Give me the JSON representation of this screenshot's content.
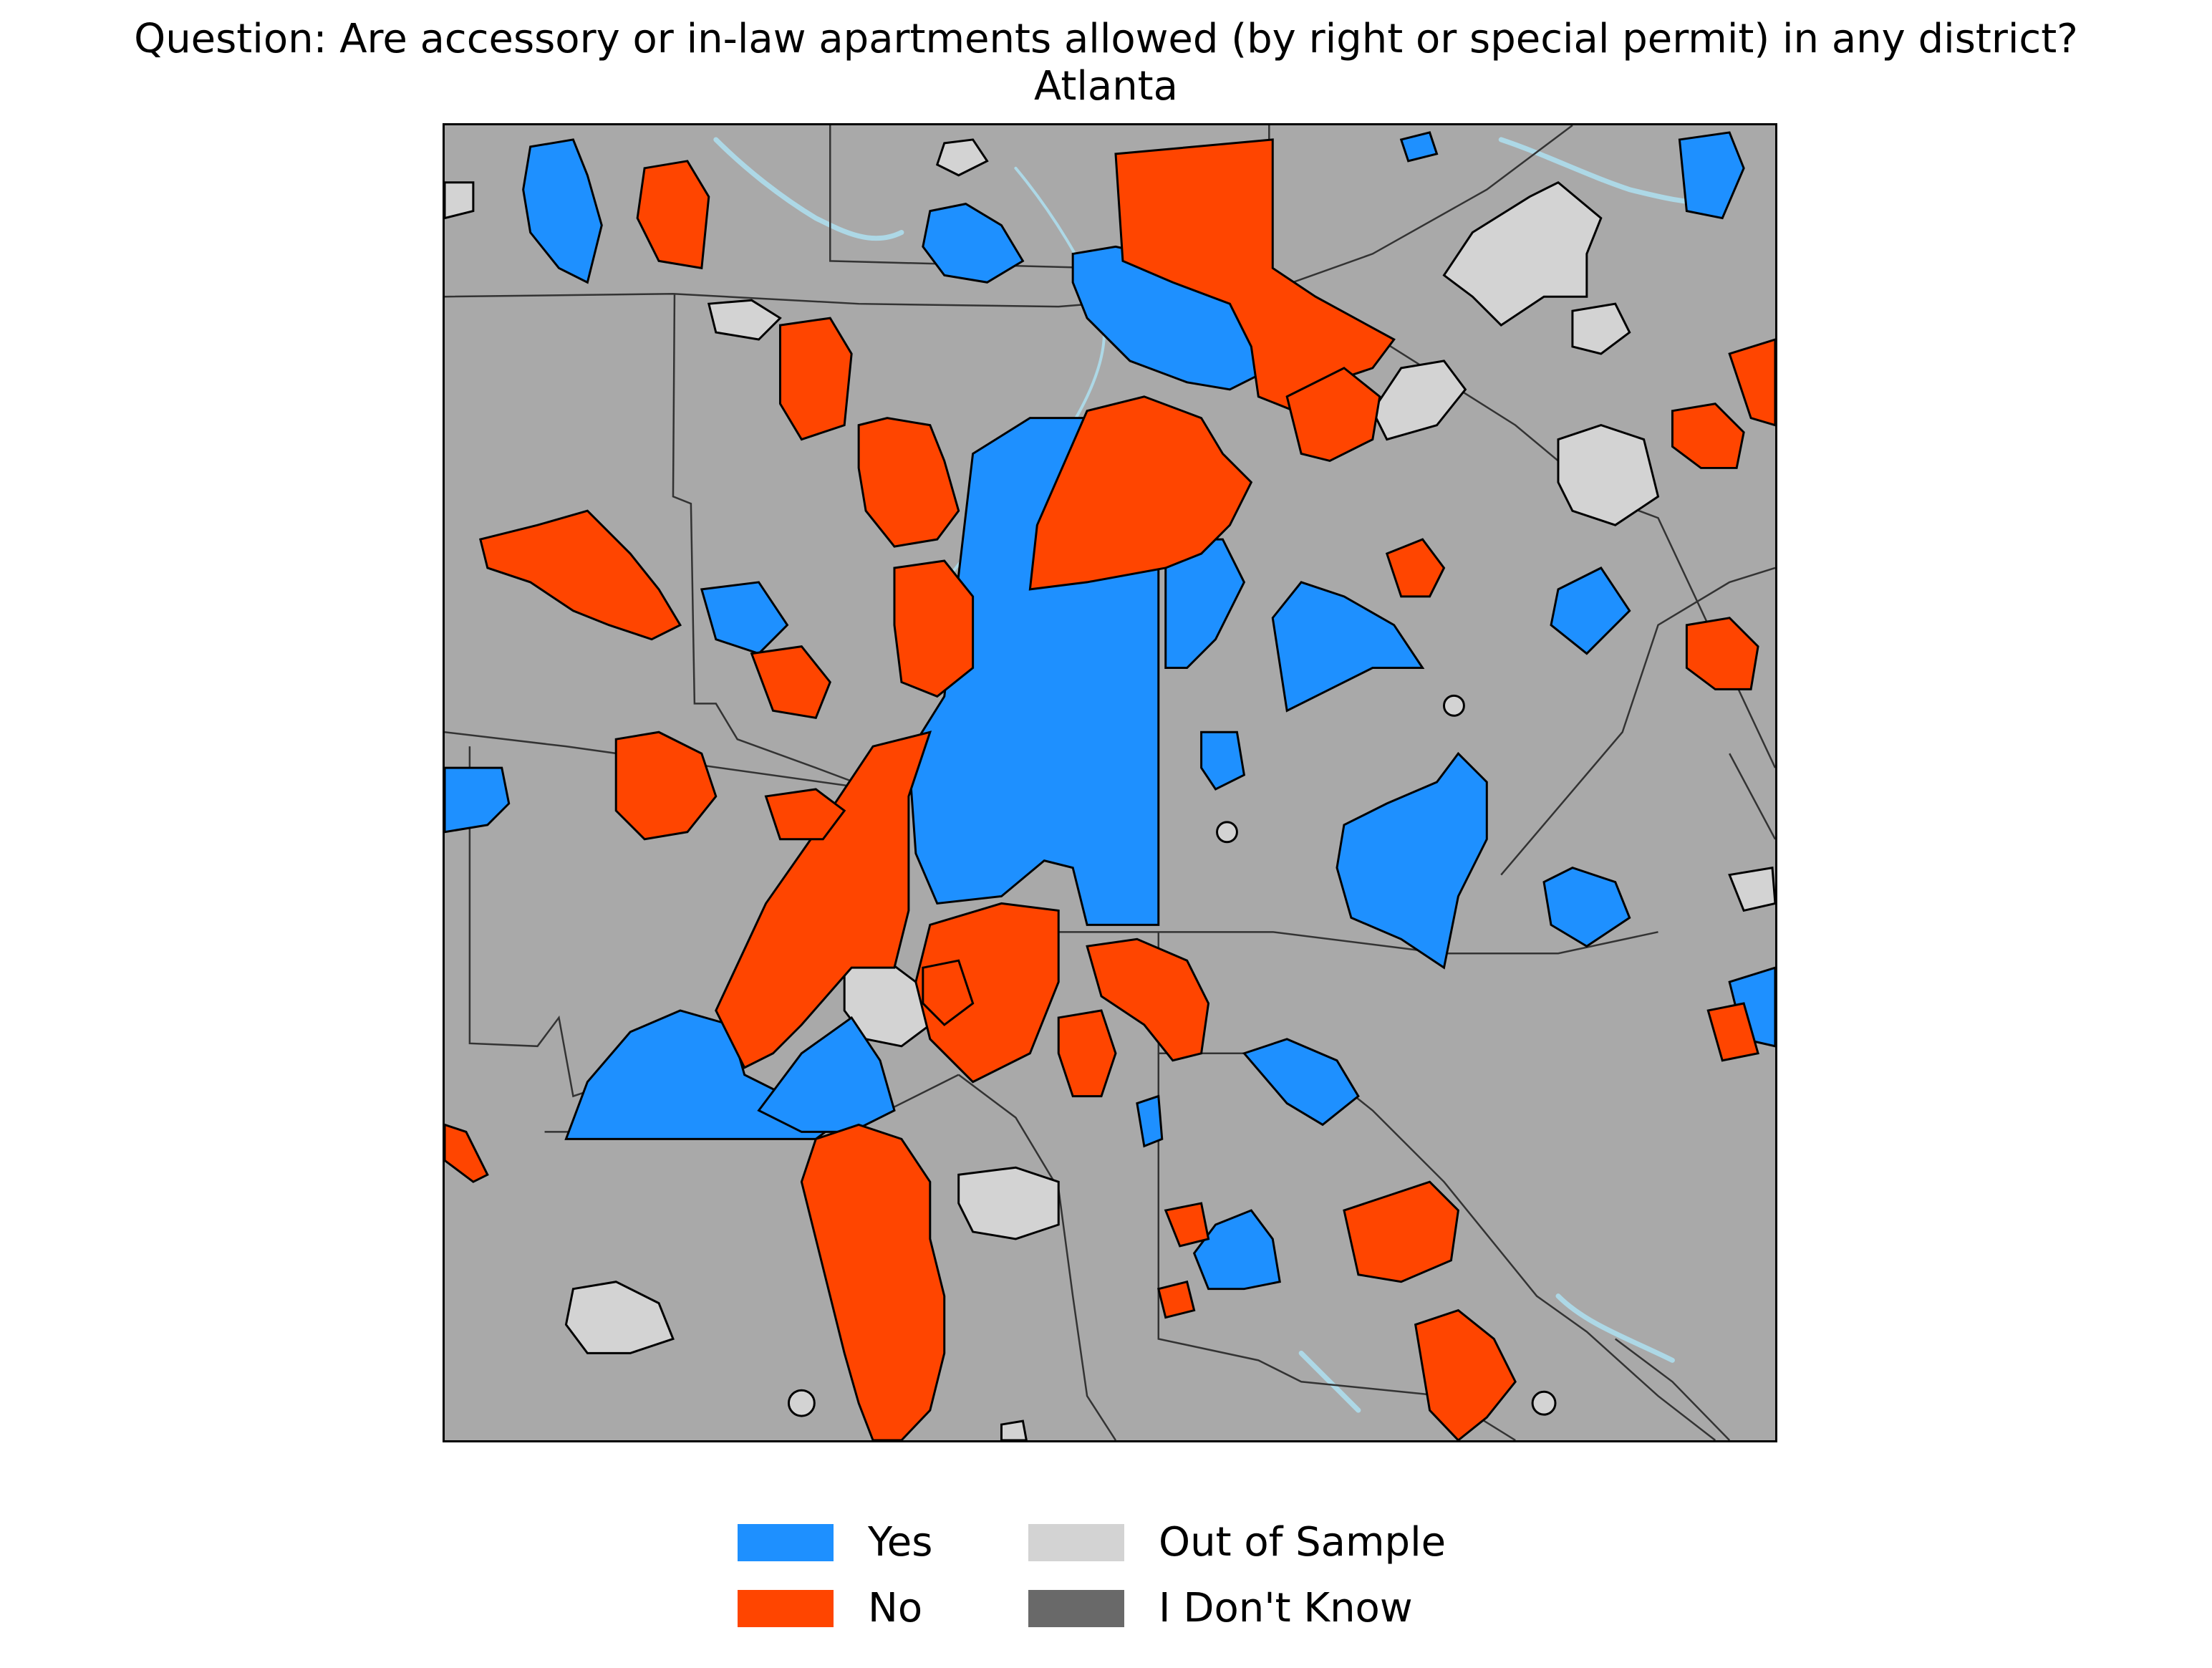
{
  "title": {
    "question": "Question: Are accessory or in-law apartments allowed (by right or special permit) in any district?",
    "region": "Atlanta"
  },
  "map": {
    "background_color": "#a9a9a9",
    "water_color": "#add8e6",
    "county_border_color": "#333333"
  },
  "legend": {
    "items": [
      {
        "label": "Yes",
        "color": "#1e90ff"
      },
      {
        "label": "No",
        "color": "#ff4500"
      },
      {
        "label": "Out of Sample",
        "color": "#d3d3d3"
      },
      {
        "label": "I Don't Know",
        "color": "#696969"
      }
    ]
  }
}
